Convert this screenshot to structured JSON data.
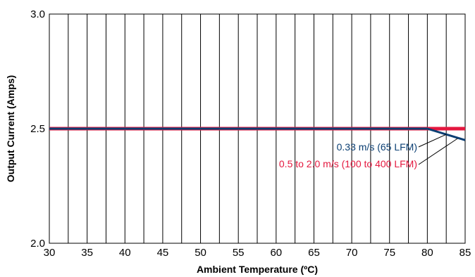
{
  "chart_data": {
    "type": "line",
    "xlabel": "Ambient Temperature (ºC)",
    "ylabel": "Output Current (Amps)",
    "xlim": [
      30,
      85
    ],
    "ylim": [
      2.0,
      3.0
    ],
    "x_ticks": [
      "30",
      "35",
      "40",
      "45",
      "50",
      "55",
      "60",
      "65",
      "70",
      "75",
      "80",
      "85"
    ],
    "y_ticks": [
      "2.0",
      "2.5",
      "3.0"
    ],
    "grid": {
      "vertical_every": 2.5,
      "horizontal": false
    },
    "series": [
      {
        "name": "0.5 to 2.0 m/s (100 to 400 LFM)",
        "color": "#e4173e",
        "x": [
          30,
          85
        ],
        "y": [
          2.5,
          2.5
        ]
      },
      {
        "name": "0.33 m/s (65 LFM)",
        "color": "#0b3f73",
        "x": [
          30,
          80,
          85
        ],
        "y": [
          2.5,
          2.5,
          2.45
        ]
      }
    ],
    "annotations": [
      {
        "text": "0.33 m/s (65 LFM)",
        "color": "#0b3f73"
      },
      {
        "text": "0.5 to 2.0 m/s (100 to 400 LFM)",
        "color": "#e4173e"
      }
    ]
  }
}
